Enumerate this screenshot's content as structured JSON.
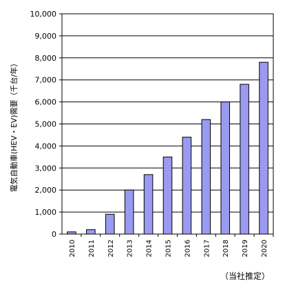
{
  "chart_data": {
    "type": "bar",
    "ylabel": "電気自動車(HEV・EV)需要（千台/年）",
    "note": "（当社推定）",
    "categories": [
      "2010",
      "2011",
      "2012",
      "2013",
      "2014",
      "2015",
      "2016",
      "2017",
      "2018",
      "2019",
      "2020"
    ],
    "values": [
      100,
      200,
      900,
      2000,
      2700,
      3500,
      4400,
      5200,
      6000,
      6800,
      7800
    ],
    "ylim": [
      0,
      10000
    ],
    "yticks": [
      0,
      1000,
      2000,
      3000,
      4000,
      5000,
      6000,
      7000,
      8000,
      9000,
      10000
    ],
    "ytick_labels": [
      "0",
      "1,000",
      "2,000",
      "3,000",
      "4,000",
      "5,000",
      "6,000",
      "7,000",
      "8,000",
      "9,000",
      "10,000"
    ],
    "grid": true,
    "bar_color": "#9a9af0",
    "bar_edge_color": "#000000"
  }
}
